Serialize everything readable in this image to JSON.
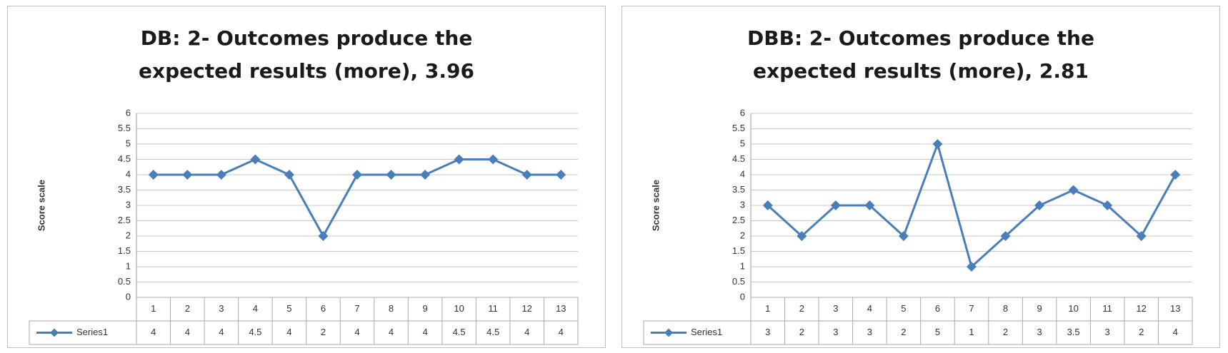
{
  "chart_data": [
    {
      "type": "line",
      "title": "DB: 2- Outcomes produce the expected results (more), 3.96",
      "y_label": "Score scale",
      "categories": [
        "1",
        "2",
        "3",
        "4",
        "5",
        "6",
        "7",
        "8",
        "9",
        "10",
        "11",
        "12",
        "13"
      ],
      "series": [
        {
          "name": "Series1",
          "color": "#4a7ebb",
          "values": [
            4,
            4,
            4,
            4.5,
            4,
            2,
            4,
            4,
            4,
            4.5,
            4.5,
            4,
            4
          ]
        }
      ],
      "ylim": [
        0,
        6
      ],
      "yticks": [
        0,
        0.5,
        1,
        1.5,
        2,
        2.5,
        3,
        3.5,
        4,
        4.5,
        5,
        5.5,
        6
      ],
      "grid": true,
      "data_table": true
    },
    {
      "type": "line",
      "title": "DBB: 2- Outcomes produce the expected results (more), 2.81",
      "y_label": "Score scale",
      "categories": [
        "1",
        "2",
        "3",
        "4",
        "5",
        "6",
        "7",
        "8",
        "9",
        "10",
        "11",
        "12",
        "13"
      ],
      "series": [
        {
          "name": "Series1",
          "color": "#4a7ebb",
          "values": [
            3,
            2,
            3,
            3,
            2,
            5,
            1,
            2,
            3,
            3.5,
            3,
            2,
            4
          ]
        }
      ],
      "ylim": [
        0,
        6
      ],
      "yticks": [
        0,
        0.5,
        1,
        1.5,
        2,
        2.5,
        3,
        3.5,
        4,
        4.5,
        5,
        5.5,
        6
      ],
      "grid": true,
      "data_table": true
    }
  ]
}
